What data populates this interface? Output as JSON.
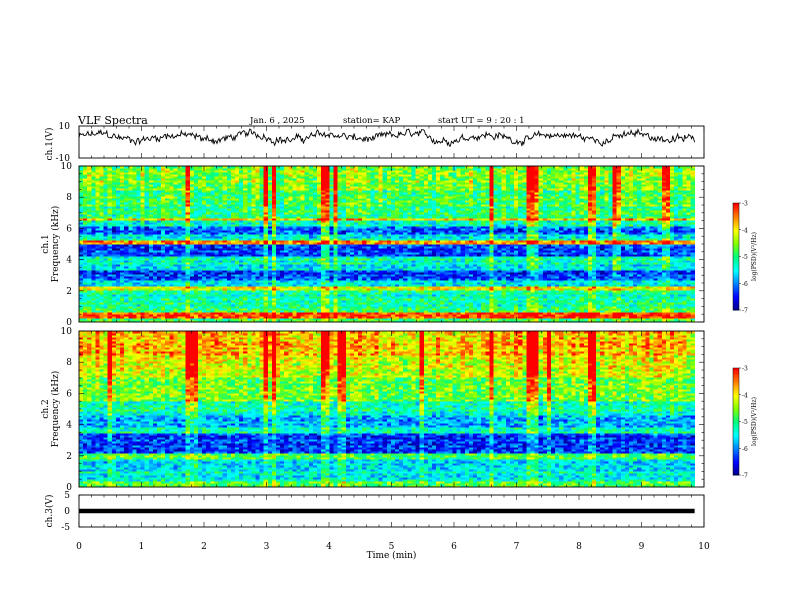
{
  "header": {
    "title": "VLF Spectra",
    "date": "Jan. 6 , 2025",
    "station": "station= KAP",
    "start_ut": "start UT = 9 : 20 : 1"
  },
  "colors": {
    "colormap": [
      "#000080",
      "#0000ff",
      "#0080ff",
      "#00ffff",
      "#00ff80",
      "#80ff00",
      "#ffff00",
      "#ff8000",
      "#ff0000",
      "#ffffff"
    ],
    "trace": "#000000"
  },
  "chart_data": [
    {
      "type": "line",
      "panel": "ch1-waveform",
      "ylabel": "ch.1(V)",
      "ylim": [
        -10,
        10
      ],
      "yticks": [
        "10",
        "-10"
      ],
      "x_range_min": [
        0,
        9.85
      ],
      "description_values": "noisy waveform fluctuating roughly between -2 and 10 V",
      "y_mean": 3,
      "y_spread": 3.5
    },
    {
      "type": "heatmap",
      "panel": "ch1-spectrogram",
      "ylabel": "ch.1\nFrequency (kHz)",
      "ylim": [
        0,
        10
      ],
      "yticks": [
        "0",
        "2",
        "4",
        "6",
        "8",
        "10"
      ],
      "xlim": [
        0,
        10
      ],
      "x_data_end": 9.85,
      "colorbar": {
        "label": "log(PSD)(V²/Hz)",
        "range": [
          -7,
          -3
        ],
        "ticks": [
          "-3",
          "-4",
          "-5",
          "-6",
          "-7"
        ]
      },
      "band_levels": [
        {
          "f": [
            0.0,
            0.3
          ],
          "v": 0.55
        },
        {
          "f": [
            0.3,
            0.6
          ],
          "v": 0.95
        },
        {
          "f": [
            0.6,
            1.0
          ],
          "v": 0.5
        },
        {
          "f": [
            1.0,
            2.0
          ],
          "v": 0.45
        },
        {
          "f": [
            2.0,
            2.3
          ],
          "v": 0.75
        },
        {
          "f": [
            2.3,
            2.7
          ],
          "v": 0.4
        },
        {
          "f": [
            2.7,
            3.3
          ],
          "v": 0.18
        },
        {
          "f": [
            3.3,
            3.7
          ],
          "v": 0.35
        },
        {
          "f": [
            3.7,
            4.2
          ],
          "v": 0.45
        },
        {
          "f": [
            4.2,
            5.0
          ],
          "v": 0.2
        },
        {
          "f": [
            5.0,
            5.3
          ],
          "v": 0.85
        },
        {
          "f": [
            5.3,
            5.7
          ],
          "v": 0.4
        },
        {
          "f": [
            5.7,
            6.2
          ],
          "v": 0.22
        },
        {
          "f": [
            6.2,
            6.5
          ],
          "v": 0.45
        },
        {
          "f": [
            6.5,
            6.7
          ],
          "v": 0.8
        },
        {
          "f": [
            6.7,
            7.5
          ],
          "v": 0.5
        },
        {
          "f": [
            7.5,
            8.5
          ],
          "v": 0.55
        },
        {
          "f": [
            8.5,
            10.0
          ],
          "v": 0.62
        }
      ],
      "bright_columns_min": [
        1.75,
        3.0,
        3.1,
        3.95,
        4.1,
        6.6,
        7.2,
        7.3,
        8.2,
        8.6,
        9.4
      ]
    },
    {
      "type": "heatmap",
      "panel": "ch2-spectrogram",
      "ylabel": "ch.2\nFrequency (kHz)",
      "ylim": [
        0,
        10
      ],
      "yticks": [
        "0",
        "2",
        "4",
        "6",
        "8",
        "10"
      ],
      "xlim": [
        0,
        10
      ],
      "x_data_end": 9.85,
      "colorbar": {
        "label": "log(PSD)(V²/Hz)",
        "range": [
          -7,
          -3
        ],
        "ticks": [
          "-3",
          "-4",
          "-5",
          "-6",
          "-7"
        ]
      },
      "band_levels": [
        {
          "f": [
            0.0,
            0.4
          ],
          "v": 0.6
        },
        {
          "f": [
            0.4,
            1.0
          ],
          "v": 0.4
        },
        {
          "f": [
            1.0,
            1.8
          ],
          "v": 0.35
        },
        {
          "f": [
            1.8,
            2.2
          ],
          "v": 0.55
        },
        {
          "f": [
            2.2,
            3.4
          ],
          "v": 0.18
        },
        {
          "f": [
            3.4,
            3.9
          ],
          "v": 0.45
        },
        {
          "f": [
            3.9,
            4.6
          ],
          "v": 0.3
        },
        {
          "f": [
            4.6,
            5.5
          ],
          "v": 0.45
        },
        {
          "f": [
            5.5,
            7.0
          ],
          "v": 0.6
        },
        {
          "f": [
            7.0,
            8.5
          ],
          "v": 0.72
        },
        {
          "f": [
            8.5,
            10.0
          ],
          "v": 0.8
        }
      ],
      "bright_columns_min": [
        0.5,
        1.75,
        1.85,
        3.0,
        3.1,
        3.95,
        4.2,
        5.5,
        6.6,
        7.2,
        7.3,
        7.5,
        8.2
      ]
    },
    {
      "type": "line",
      "panel": "ch3-waveform",
      "ylabel": "ch.3(V)",
      "ylim": [
        -5,
        5
      ],
      "yticks": [
        "5",
        "0",
        "-5"
      ],
      "x_range_min": [
        0,
        9.85
      ],
      "y_constant": 0,
      "y_thickness_v": 1.4
    }
  ],
  "xaxis": {
    "label": "Time (min)",
    "ticks": [
      "0",
      "1",
      "2",
      "3",
      "4",
      "5",
      "6",
      "7",
      "8",
      "9",
      "10"
    ]
  }
}
